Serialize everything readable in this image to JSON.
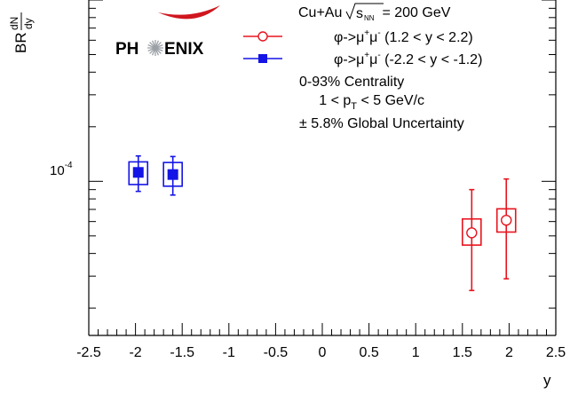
{
  "chart_data": {
    "type": "scatter",
    "title": "",
    "xlabel": "y",
    "ylabel_prefix": "BR",
    "ylabel_num": "dN",
    "ylabel_den": "dy",
    "xlim": [
      -2.5,
      2.5
    ],
    "ylog": true,
    "ylim_log10": [
      -4.85,
      -3.0
    ],
    "x_ticks": [
      {
        "v": -2.5,
        "label": "-2.5"
      },
      {
        "v": -2.0,
        "label": "-2"
      },
      {
        "v": -1.5,
        "label": "-1.5"
      },
      {
        "v": -1.0,
        "label": "-1"
      },
      {
        "v": -0.5,
        "label": "-0.5"
      },
      {
        "v": 0.0,
        "label": "0"
      },
      {
        "v": 0.5,
        "label": "0.5"
      },
      {
        "v": 1.0,
        "label": "1"
      },
      {
        "v": 1.5,
        "label": "1.5"
      },
      {
        "v": 2.0,
        "label": "2"
      },
      {
        "v": 2.5,
        "label": "2.5"
      }
    ],
    "y_tick_label": {
      "base": "10",
      "exp": "-4"
    },
    "logo": "PHENIX",
    "legend_placement": "top-right",
    "annotation": {
      "system": "Cu+Au",
      "sqrt": "s",
      "sqrt_sub": "NN",
      "energy": " = 200 GeV",
      "centrality": "0-93% Centrality",
      "pt_pre": "1 < p",
      "pt_sub": "T",
      "pt_post": " < 5 GeV/c",
      "global_unc": "± 5.8% Global Uncertainty"
    },
    "series": [
      {
        "name_pre": "φ->μ",
        "name_sup1": "+",
        "name_mid": "μ",
        "name_sup2": "-",
        "name_post": " (1.2 < y < 2.2)",
        "color": "#e8141e",
        "marker": "open-circle",
        "points": [
          {
            "x": 1.6,
            "y": 5.2e-05,
            "stat": [
              2.5e-05,
              9e-05
            ],
            "sys": [
              4.45e-05,
              6.2e-05
            ]
          },
          {
            "x": 1.97,
            "y": 6.1e-05,
            "stat": [
              2.9e-05,
              0.000103
            ],
            "sys": [
              5.25e-05,
              7.05e-05
            ]
          }
        ]
      },
      {
        "name_pre": "φ->μ",
        "name_sup1": "+",
        "name_mid": "μ",
        "name_sup2": "-",
        "name_post": " (-2.2 < y < -1.2)",
        "color": "#1414e6",
        "marker": "filled-square",
        "points": [
          {
            "x": -1.97,
            "y": 0.000112,
            "stat": [
              8.8e-05,
              0.000138
            ],
            "sys": [
              9.6e-05,
              0.000128
            ]
          },
          {
            "x": -1.6,
            "y": 0.000109,
            "stat": [
              8.4e-05,
              0.000137
            ],
            "sys": [
              9.4e-05,
              0.000127
            ]
          }
        ]
      }
    ]
  }
}
